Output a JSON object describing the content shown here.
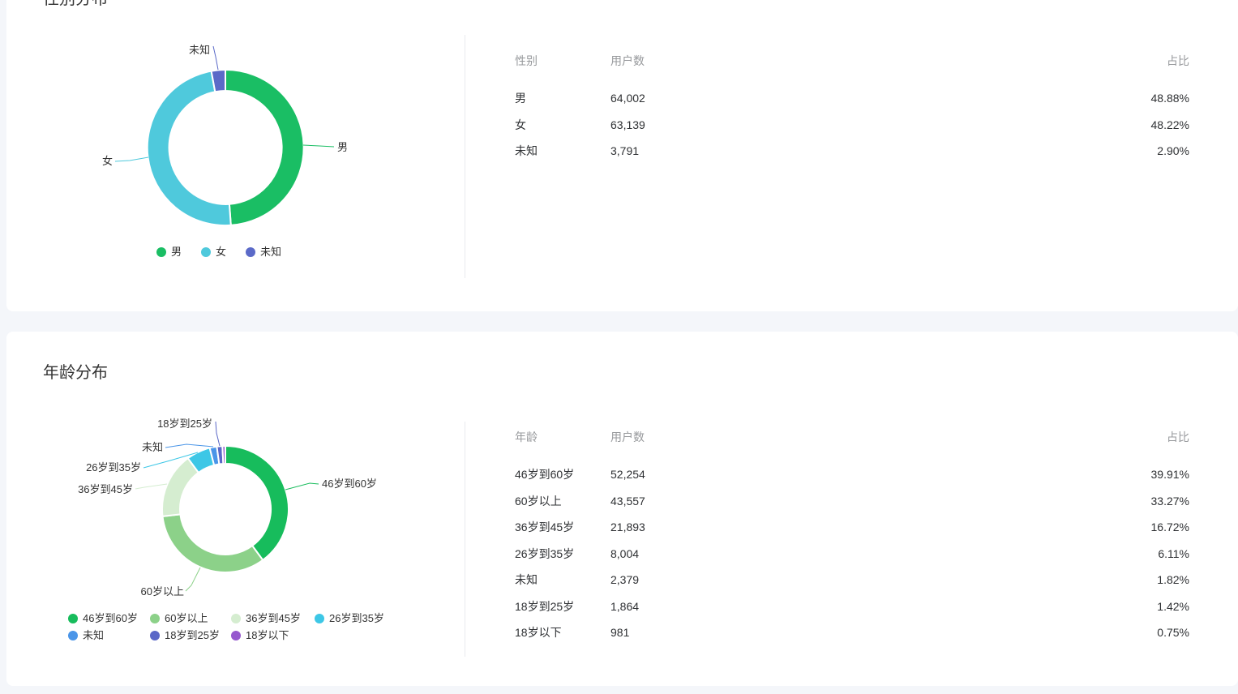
{
  "page": {
    "background": "#F4F6FA",
    "card_background": "#FFFFFF"
  },
  "sections": [
    {
      "title": "性别分布",
      "table": {
        "headers": [
          "性别",
          "用户数",
          "占比"
        ],
        "rows": [
          [
            "男",
            "64,002",
            "48.88%"
          ],
          [
            "女",
            "63,139",
            "48.22%"
          ],
          [
            "未知",
            "3,791",
            "2.90%"
          ]
        ]
      }
    },
    {
      "title": "年龄分布",
      "table": {
        "headers": [
          "年龄",
          "用户数",
          "占比"
        ],
        "rows": [
          [
            "46岁到60岁",
            "52,254",
            "39.91%"
          ],
          [
            "60岁以上",
            "43,557",
            "33.27%"
          ],
          [
            "36岁到45岁",
            "21,893",
            "16.72%"
          ],
          [
            "26岁到35岁",
            "8,004",
            "6.11%"
          ],
          [
            "未知",
            "2,379",
            "1.82%"
          ],
          [
            "18岁到25岁",
            "1,864",
            "1.42%"
          ],
          [
            "18岁以下",
            "981",
            "0.75%"
          ]
        ]
      }
    }
  ],
  "chart_data": [
    {
      "type": "pie",
      "title": "性别分布",
      "donut": true,
      "start_angle": "top",
      "direction": "clockwise",
      "legend_position": "bottom",
      "series": [
        {
          "name": "男",
          "value": 64002,
          "percent": 48.88,
          "color": "#1ABE64"
        },
        {
          "name": "女",
          "value": 63139,
          "percent": 48.22,
          "color": "#4FC9DC"
        },
        {
          "name": "未知",
          "value": 3791,
          "percent": 2.9,
          "color": "#5B6AC8"
        }
      ]
    },
    {
      "type": "pie",
      "title": "年龄分布",
      "donut": true,
      "start_angle": "top",
      "direction": "clockwise",
      "legend_position": "bottom",
      "series": [
        {
          "name": "46岁到60岁",
          "value": 52254,
          "percent": 39.91,
          "color": "#17BC5C"
        },
        {
          "name": "60岁以上",
          "value": 43557,
          "percent": 33.27,
          "color": "#8CD189"
        },
        {
          "name": "36岁到45岁",
          "value": 21893,
          "percent": 16.72,
          "color": "#D5EDD0"
        },
        {
          "name": "26岁到35岁",
          "value": 8004,
          "percent": 6.11,
          "color": "#3DC7E6"
        },
        {
          "name": "未知",
          "value": 2379,
          "percent": 1.82,
          "color": "#4A95E8"
        },
        {
          "name": "18岁到25岁",
          "value": 1864,
          "percent": 1.42,
          "color": "#5B68C7"
        },
        {
          "name": "18岁以下",
          "value": 981,
          "percent": 0.75,
          "color": "#9659CE"
        }
      ]
    }
  ]
}
